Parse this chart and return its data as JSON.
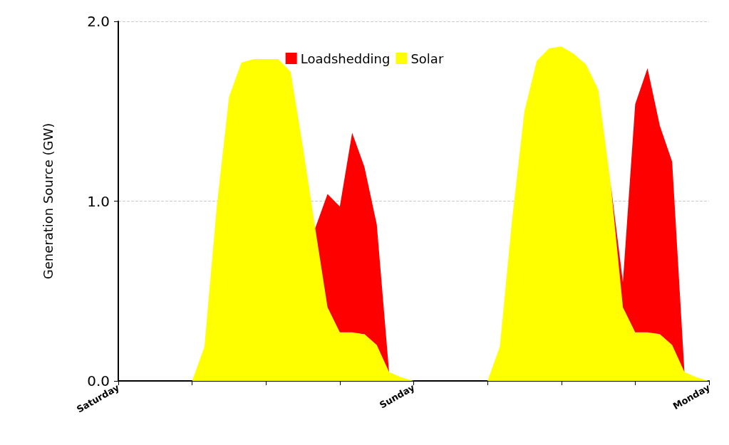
{
  "chart_data": {
    "type": "area",
    "stacked": true,
    "ylabel": "Generation Source (GW)",
    "categories": [
      "Saturday",
      null,
      null,
      null,
      null,
      null,
      null,
      null,
      null,
      null,
      null,
      null,
      null,
      null,
      null,
      null,
      null,
      null,
      null,
      null,
      null,
      null,
      null,
      null,
      "Sunday",
      null,
      null,
      null,
      null,
      null,
      null,
      null,
      null,
      null,
      null,
      null,
      null,
      null,
      null,
      null,
      null,
      null,
      null,
      null,
      null,
      null,
      null,
      null,
      "Monday"
    ],
    "series": [
      {
        "name": "Solar",
        "color": "#ffff00",
        "values": [
          0,
          0,
          0,
          0,
          0,
          0,
          0,
          0.19,
          0.97,
          1.58,
          1.77,
          1.79,
          1.79,
          1.79,
          1.72,
          1.3,
          0.85,
          0.41,
          0.27,
          0.27,
          0.26,
          0.2,
          0.05,
          0.02,
          0,
          0,
          0,
          0,
          0,
          0,
          0,
          0.19,
          0.9,
          1.5,
          1.78,
          1.85,
          1.86,
          1.82,
          1.76,
          1.62,
          1.1,
          0.41,
          0.27,
          0.27,
          0.26,
          0.2,
          0.05,
          0.02,
          0
        ]
      },
      {
        "name": "Loadshedding",
        "color": "#ff0000",
        "values": [
          null,
          null,
          null,
          null,
          null,
          null,
          null,
          null,
          null,
          null,
          null,
          null,
          null,
          null,
          null,
          null,
          0,
          0.63,
          0.7,
          1.11,
          0.93,
          0.67,
          0,
          null,
          null,
          null,
          null,
          null,
          null,
          null,
          null,
          null,
          null,
          null,
          null,
          null,
          null,
          null,
          null,
          null,
          0,
          0.14,
          1.27,
          1.47,
          1.16,
          1.02,
          0,
          null,
          null
        ]
      }
    ],
    "ylim": [
      0,
      2
    ],
    "yticks": [
      {
        "value": 0,
        "label": "0.0"
      },
      {
        "value": 1,
        "label": "1.0"
      },
      {
        "value": 2,
        "label": "2.0"
      }
    ],
    "grid": "y",
    "legend": "top"
  }
}
